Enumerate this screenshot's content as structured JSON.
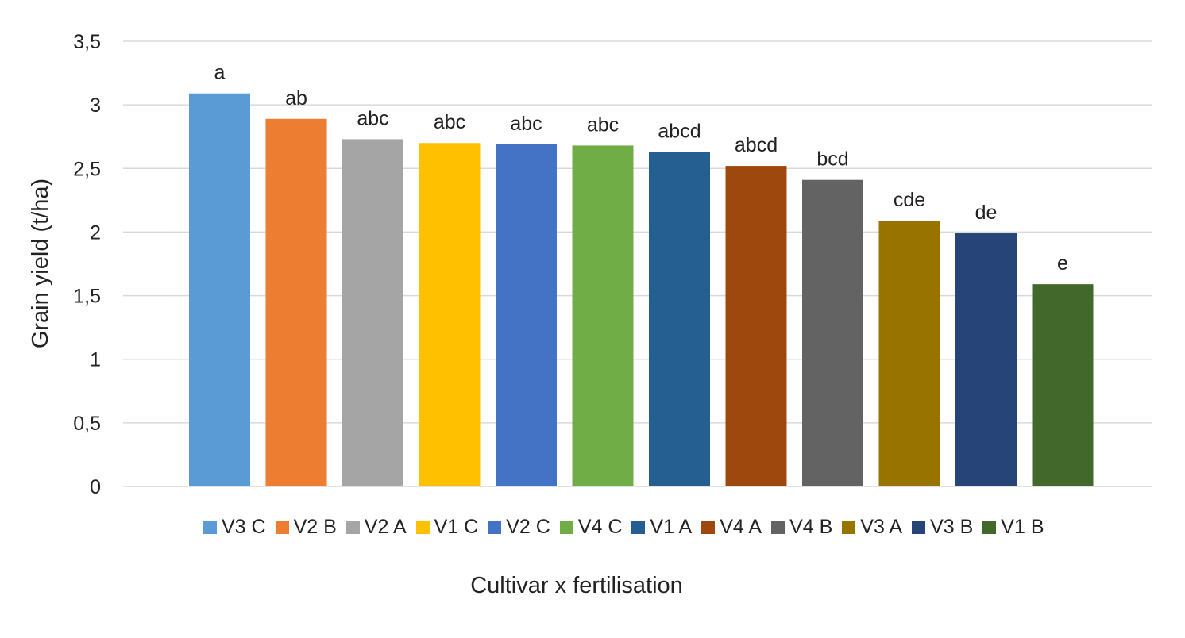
{
  "chart_data": {
    "type": "bar",
    "title": "",
    "xlabel": "Cultivar x fertilisation",
    "ylabel": "Grain yield (t/ha)",
    "ylim": [
      0,
      3.5
    ],
    "yticks": [
      "0",
      "0,5",
      "1",
      "1,5",
      "2",
      "2,5",
      "3",
      "3,5"
    ],
    "ytick_values": [
      0,
      0.5,
      1,
      1.5,
      2,
      2.5,
      3,
      3.5
    ],
    "grid": true,
    "legend_position": "bottom",
    "categories": [
      "V3 C",
      "V2 B",
      "V2 A",
      "V1 C",
      "V2 C",
      "V4 C",
      "V1 A",
      "V4 A",
      "V4 B",
      "V3 A",
      "V3 B",
      "V1 B"
    ],
    "values": [
      3.09,
      2.89,
      2.73,
      2.7,
      2.69,
      2.68,
      2.63,
      2.52,
      2.41,
      2.09,
      1.99,
      1.59
    ],
    "data_labels": [
      "a",
      "ab",
      "abc",
      "abc",
      "abc",
      "abc",
      "abcd",
      "abcd",
      "bcd",
      "cde",
      "de",
      "e"
    ],
    "colors": [
      "#5B9BD5",
      "#ED7D31",
      "#A5A5A5",
      "#FFC000",
      "#4472C4",
      "#70AD47",
      "#255E91",
      "#9E480E",
      "#636363",
      "#997300",
      "#264478",
      "#43682B"
    ]
  }
}
